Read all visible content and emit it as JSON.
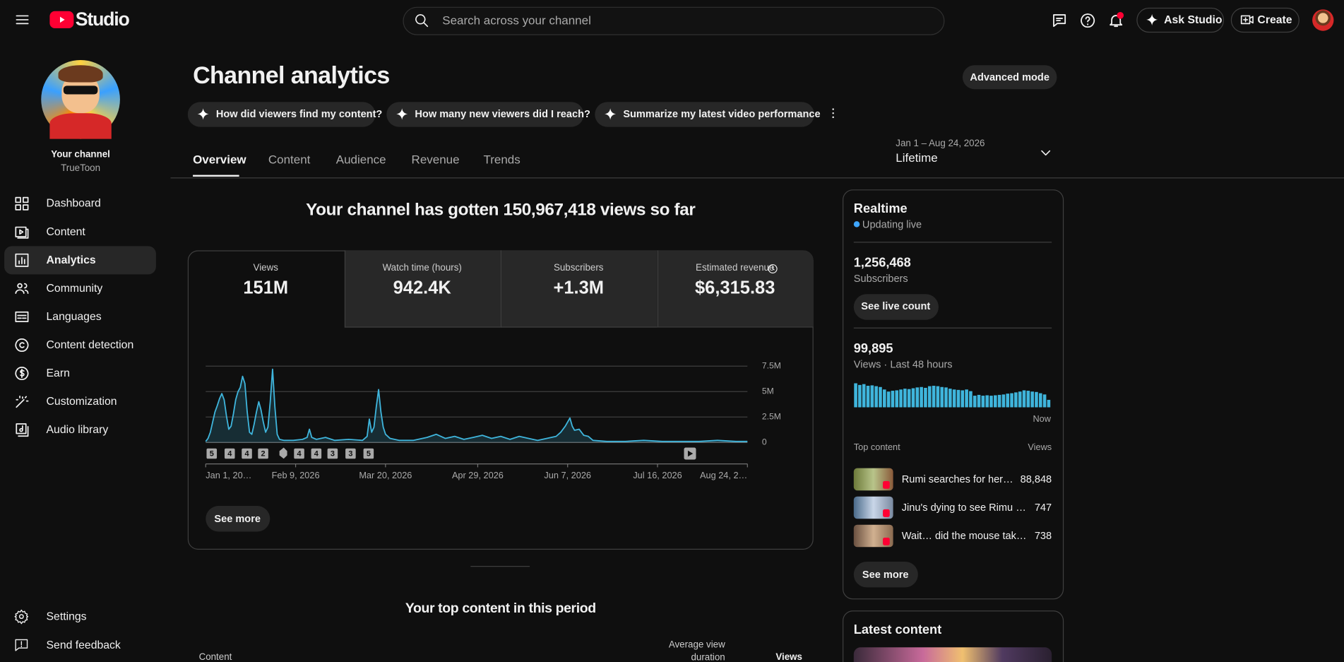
{
  "header": {
    "logo": "Studio",
    "search_placeholder": "Search across your channel",
    "ask_studio": "Ask Studio",
    "create": "Create"
  },
  "sidebar": {
    "channel_label": "Your channel",
    "channel_name": "TrueToon",
    "nav": [
      "Dashboard",
      "Content",
      "Analytics",
      "Community",
      "Languages",
      "Content detection",
      "Earn",
      "Customization",
      "Audio library"
    ],
    "active_nav": "Analytics",
    "footer": [
      "Settings",
      "Send feedback"
    ]
  },
  "page": {
    "title": "Channel analytics",
    "advanced_mode": "Advanced mode",
    "suggestions": [
      "How did viewers find my content?",
      "How many new viewers did I reach?",
      "Summarize my latest video performance"
    ],
    "tabs": [
      "Overview",
      "Content",
      "Audience",
      "Revenue",
      "Trends"
    ],
    "active_tab": "Overview",
    "date_range": "Jan 1 – Aug 24, 2026",
    "period": "Lifetime",
    "summary": "Your channel has gotten 150,967,418 views so far",
    "see_more": "See more"
  },
  "metrics": [
    {
      "label": "Views",
      "value": "151M"
    },
    {
      "label": "Watch time (hours)",
      "value": "942.4K"
    },
    {
      "label": "Subscribers",
      "value": "+1.3M"
    },
    {
      "label": "Estimated revenue",
      "value": "$6,315.83"
    }
  ],
  "chart_data": [
    {
      "type": "line",
      "color": "#3fb5dc",
      "grid": true,
      "x": [
        "2026-01-01",
        "2026-01-02",
        "2026-01-03",
        "2026-01-04",
        "2026-01-05",
        "2026-01-06",
        "2026-01-07",
        "2026-01-08",
        "2026-01-09",
        "2026-01-10",
        "2026-01-11",
        "2026-01-12",
        "2026-01-13",
        "2026-01-14",
        "2026-01-15",
        "2026-01-16",
        "2026-01-17",
        "2026-01-18",
        "2026-01-19",
        "2026-01-20",
        "2026-01-21",
        "2026-01-22",
        "2026-01-23",
        "2026-01-24",
        "2026-01-25",
        "2026-01-26",
        "2026-01-27",
        "2026-01-28",
        "2026-01-29",
        "2026-01-30",
        "2026-01-31",
        "2026-02-01",
        "2026-02-02",
        "2026-02-04",
        "2026-02-08",
        "2026-02-12",
        "2026-02-14",
        "2026-02-15",
        "2026-02-16",
        "2026-02-18",
        "2026-02-22",
        "2026-02-26",
        "2026-03-04",
        "2026-03-10",
        "2026-03-12",
        "2026-03-13",
        "2026-03-14",
        "2026-03-15",
        "2026-03-16",
        "2026-03-17",
        "2026-03-18",
        "2026-03-19",
        "2026-03-20",
        "2026-03-22",
        "2026-03-26",
        "2026-04-01",
        "2026-04-07",
        "2026-04-11",
        "2026-04-15",
        "2026-04-19",
        "2026-04-23",
        "2026-04-27",
        "2026-05-01",
        "2026-05-05",
        "2026-05-09",
        "2026-05-13",
        "2026-05-17",
        "2026-05-21",
        "2026-05-25",
        "2026-05-29",
        "2026-06-02",
        "2026-06-04",
        "2026-06-06",
        "2026-06-08",
        "2026-06-09",
        "2026-06-10",
        "2026-06-12",
        "2026-06-14",
        "2026-06-16",
        "2026-06-18",
        "2026-06-24",
        "2026-07-02",
        "2026-07-10",
        "2026-07-18",
        "2026-07-26",
        "2026-08-03",
        "2026-08-11",
        "2026-08-19",
        "2026-08-24"
      ],
      "values": [
        100000,
        400000,
        1000000,
        2000000,
        3000000,
        3600000,
        4300000,
        4800000,
        4200000,
        2600000,
        1300000,
        1600000,
        2800000,
        4200000,
        5000000,
        5400000,
        6500000,
        5800000,
        3000000,
        1000000,
        800000,
        1800000,
        3000000,
        4000000,
        3200000,
        2000000,
        1000000,
        1500000,
        4000000,
        7200000,
        3500000,
        800000,
        300000,
        200000,
        200000,
        300000,
        500000,
        1300000,
        500000,
        300000,
        500000,
        200000,
        300000,
        200000,
        600000,
        2300000,
        1000000,
        1500000,
        3500000,
        5200000,
        3000000,
        1500000,
        800000,
        400000,
        200000,
        200000,
        500000,
        800000,
        400000,
        600000,
        300000,
        500000,
        700000,
        400000,
        600000,
        300000,
        600000,
        400000,
        200000,
        400000,
        600000,
        1000000,
        1600000,
        2400000,
        1600000,
        1200000,
        1300000,
        700000,
        600000,
        200000,
        100000,
        100000,
        200000,
        100000,
        100000,
        100000,
        200000,
        100000,
        100000
      ],
      "xlim": [
        "2026-01-01",
        "2026-08-24"
      ],
      "xticks": [
        {
          "value": "2026-01-01",
          "label": "Jan 1, 20…"
        },
        {
          "value": "2026-02-09",
          "label": "Feb 9, 2026"
        },
        {
          "value": "2026-03-20",
          "label": "Mar 20, 2026"
        },
        {
          "value": "2026-04-29",
          "label": "Apr 29, 2026"
        },
        {
          "value": "2026-06-07",
          "label": "Jun 7, 2026"
        },
        {
          "value": "2026-07-16",
          "label": "Jul 16, 2026"
        },
        {
          "value": "2026-08-24",
          "label": "Aug 24, 2…"
        }
      ],
      "ylim": [
        0,
        7500000
      ],
      "yticks": [
        0,
        {
          "value": 2500000,
          "label": "2.5M"
        },
        {
          "value": 5000000,
          "label": "5M"
        },
        {
          "value": 7500000,
          "label": "7.5M"
        }
      ],
      "annotations": [
        "5",
        "4",
        "4",
        "2",
        "4",
        "4",
        "3",
        "3",
        "5"
      ]
    },
    {
      "type": "bar",
      "color": "#3fb5dc",
      "x_label": "Now",
      "values": [
        2900,
        2700,
        2800,
        2600,
        2650,
        2550,
        2450,
        2150,
        1900,
        2000,
        2050,
        2150,
        2250,
        2200,
        2300,
        2400,
        2450,
        2350,
        2550,
        2600,
        2550,
        2450,
        2400,
        2250,
        2150,
        2100,
        2050,
        2150,
        1950,
        1400,
        1500,
        1400,
        1450,
        1400,
        1450,
        1500,
        1550,
        1650,
        1700,
        1800,
        1900,
        2050,
        2000,
        1900,
        1850,
        1700,
        1550,
        900
      ]
    }
  ],
  "top_content": {
    "title": "Your top content in this period",
    "columns": [
      "Content",
      "Average view duration",
      "Views"
    ]
  },
  "realtime": {
    "title": "Realtime",
    "status": "Updating live",
    "subscribers": "1,256,468",
    "subscribers_label": "Subscribers",
    "live_count_button": "See live count",
    "views": "99,895",
    "views_label": "Views · Last 48 hours",
    "top_content_label": "Top content",
    "views_column": "Views",
    "items": [
      {
        "title": "Rumi searches for her…",
        "views": "88,848"
      },
      {
        "title": "Jinu's dying to see Rimu …",
        "views": "747"
      },
      {
        "title": "Wait… did the mouse tak…",
        "views": "738"
      }
    ],
    "see_more": "See more"
  },
  "latest_content": {
    "title": "Latest content"
  }
}
